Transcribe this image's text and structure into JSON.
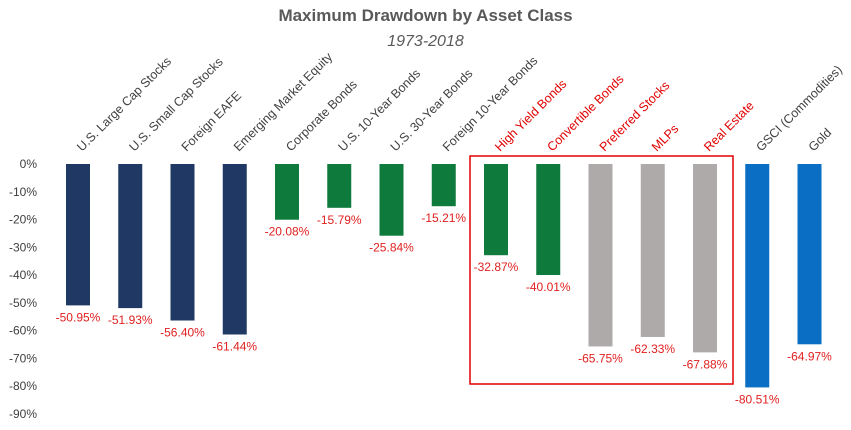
{
  "chart_data": {
    "type": "bar",
    "title": "Maximum Drawdown by Asset Class",
    "subtitle": "1973-2018",
    "xlabel": "",
    "ylabel": "",
    "ylim": [
      -90,
      0
    ],
    "yticks": [
      "0%",
      "-10%",
      "-20%",
      "-30%",
      "-40%",
      "-50%",
      "-60%",
      "-70%",
      "-80%",
      "-90%"
    ],
    "categories": [
      "U.S. Large Cap Stocks",
      "U.S. Small Cap Stocks",
      "Foreign EAFE",
      "Emerging Market Equity",
      "Corporate Bonds",
      "U.S. 10-Year Bonds",
      "U.S. 30-Year Bonds",
      "Foreign 10-Year Bonds",
      "High Yield Bonds",
      "Convertible Bonds",
      "Preferred Stocks",
      "MLPs",
      "Real Estate",
      "GSCI (Commodities)",
      "Gold"
    ],
    "values": [
      -50.95,
      -51.93,
      -56.4,
      -61.44,
      -20.08,
      -15.79,
      -25.84,
      -15.21,
      -32.87,
      -40.01,
      -65.75,
      -62.33,
      -67.88,
      -80.51,
      -64.97
    ],
    "data_labels": [
      "-50.95%",
      "-51.93%",
      "-56.40%",
      "-61.44%",
      "-20.08%",
      "-15.79%",
      "-25.84%",
      "-15.21%",
      "-32.87%",
      "-40.01%",
      "-65.75%",
      "-62.33%",
      "-67.88%",
      "-80.51%",
      "-64.97%"
    ],
    "bar_colors": [
      "#1f3864",
      "#1f3864",
      "#1f3864",
      "#1f3864",
      "#0e7a3c",
      "#0e7a3c",
      "#0e7a3c",
      "#0e7a3c",
      "#0e7a3c",
      "#0e7a3c",
      "#aeaaaa",
      "#aeaaaa",
      "#aeaaaa",
      "#0a6ec4",
      "#0a6ec4"
    ],
    "highlighted_categories": [
      "High Yield Bonds",
      "Convertible Bonds",
      "Preferred Stocks",
      "MLPs",
      "Real Estate"
    ],
    "highlight_color": "#e00000",
    "label_color": "#e02020",
    "grid": false,
    "legend": "none"
  }
}
